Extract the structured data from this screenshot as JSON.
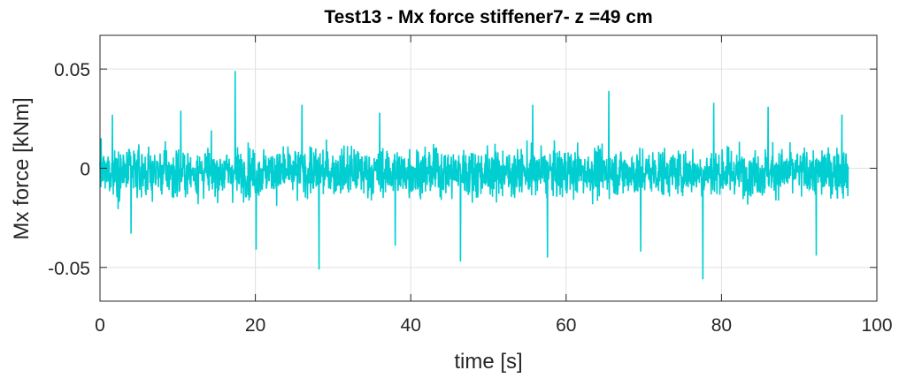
{
  "chart_data": {
    "type": "line",
    "title": "Test13 - Mx force stiffener7- z =49 cm",
    "xlabel": "time [s]",
    "ylabel": "Mx force [kNm]",
    "xlim": [
      0,
      100
    ],
    "ylim": [
      -0.067,
      0.067
    ],
    "xticks": [
      0,
      20,
      40,
      60,
      80,
      100
    ],
    "xtick_labels": [
      "0",
      "20",
      "40",
      "60",
      "80",
      "100"
    ],
    "yticks": [
      -0.05,
      0,
      0.05
    ],
    "ytick_labels": [
      "-0.05",
      "0",
      "0.05"
    ],
    "grid": true,
    "series": [
      {
        "color": "#00CED1",
        "x_start": 0,
        "x_end": 96.3,
        "baseline": -0.002,
        "envelope_upper": 0.02,
        "envelope_lower": -0.024,
        "peaks": [
          {
            "x": 17.4,
            "y": 0.049
          },
          {
            "x": 28.2,
            "y": -0.051
          },
          {
            "x": 77.6,
            "y": -0.056
          },
          {
            "x": 65.5,
            "y": 0.039
          },
          {
            "x": 46.4,
            "y": -0.047
          },
          {
            "x": 92.2,
            "y": -0.044
          },
          {
            "x": 57.6,
            "y": -0.045
          },
          {
            "x": 4.0,
            "y": -0.033
          },
          {
            "x": 10.4,
            "y": 0.029
          },
          {
            "x": 26.0,
            "y": 0.032
          },
          {
            "x": 36.0,
            "y": 0.028
          },
          {
            "x": 55.7,
            "y": 0.032
          },
          {
            "x": 79.0,
            "y": 0.033
          },
          {
            "x": 86.0,
            "y": 0.031
          },
          {
            "x": 1.6,
            "y": 0.027
          },
          {
            "x": 95.5,
            "y": 0.027
          },
          {
            "x": 20.1,
            "y": -0.041
          },
          {
            "x": 38.0,
            "y": -0.039
          },
          {
            "x": 69.6,
            "y": -0.042
          }
        ]
      }
    ]
  },
  "colors": {
    "series": "#00CED1",
    "axes": "#262626",
    "grid": "#e0e0e0"
  }
}
